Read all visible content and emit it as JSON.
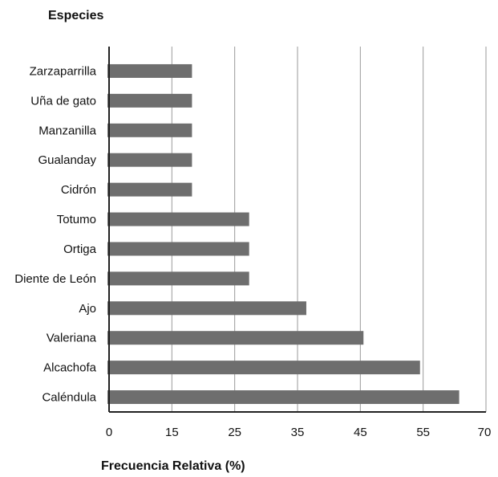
{
  "chart_data": {
    "type": "bar",
    "orientation": "horizontal",
    "title": "Especies",
    "xlabel": "Frecuencia Relativa (%)",
    "ylabel": "Especies",
    "categories": [
      "Zarzaparrilla",
      "Uña de gato",
      "Manzanilla",
      "Gualanday",
      "Cidrón",
      "Totumo",
      "Ortiga",
      "Diente de León",
      "Ajo",
      "Valeriana",
      "Alcachofa",
      "Caléndula"
    ],
    "values": [
      18.2,
      18.2,
      18.2,
      18.2,
      18.2,
      27.3,
      27.3,
      27.3,
      36.4,
      45.5,
      54.5,
      63.6
    ],
    "xticks": [
      0,
      15,
      25,
      35,
      45,
      55,
      70
    ],
    "xlim": [
      0,
      70
    ],
    "grid": "vertical",
    "bar_color": "#6e6e6e"
  }
}
